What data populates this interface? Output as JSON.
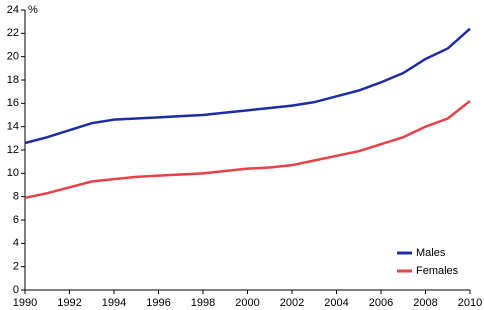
{
  "chart_data": {
    "type": "line",
    "y_label": "%",
    "x": [
      1990,
      1991,
      1992,
      1993,
      1994,
      1995,
      1996,
      1997,
      1998,
      1999,
      2000,
      2001,
      2002,
      2003,
      2004,
      2005,
      2006,
      2007,
      2008,
      2009,
      2010
    ],
    "series": [
      {
        "name": "Males",
        "color": "#1f2ca8",
        "values": [
          12.6,
          13.1,
          13.7,
          14.3,
          14.6,
          14.7,
          14.8,
          14.9,
          15.0,
          15.2,
          15.4,
          15.6,
          15.8,
          16.1,
          16.6,
          17.1,
          17.8,
          18.6,
          19.8,
          20.7,
          22.4
        ]
      },
      {
        "name": "Females",
        "color": "#e8414a",
        "values": [
          7.9,
          8.3,
          8.8,
          9.3,
          9.5,
          9.7,
          9.8,
          9.9,
          10.0,
          10.2,
          10.4,
          10.5,
          10.7,
          11.1,
          11.5,
          11.9,
          12.5,
          13.1,
          14.0,
          14.7,
          16.2
        ]
      }
    ],
    "xlim": [
      1990,
      2010
    ],
    "xticks": [
      1990,
      1992,
      1994,
      1996,
      1998,
      2000,
      2002,
      2004,
      2006,
      2008,
      2010
    ],
    "ylim": [
      0,
      24
    ],
    "yticks": [
      0,
      2,
      4,
      6,
      8,
      10,
      12,
      14,
      16,
      18,
      20,
      22,
      24
    ],
    "grid": false,
    "legend": "bottom-right"
  }
}
